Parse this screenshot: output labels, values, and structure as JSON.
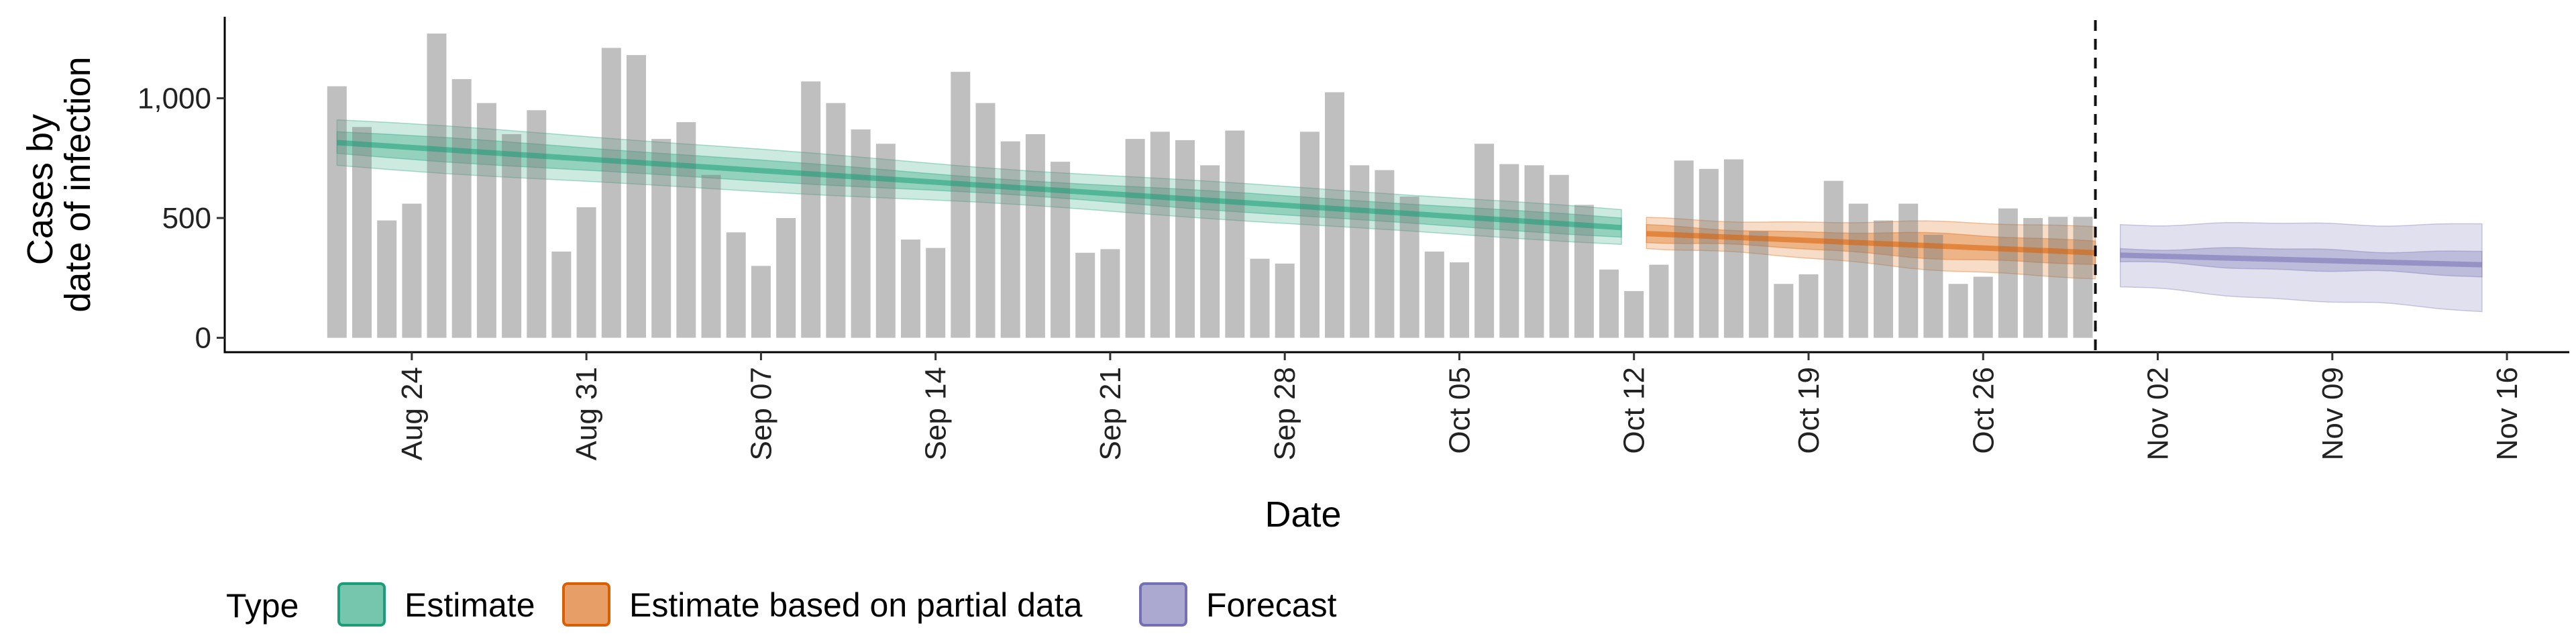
{
  "chart_data": {
    "type": "bar",
    "xlabel": "Date",
    "ylabel_lines": [
      "Cases by",
      "date of infection"
    ],
    "ylim": [
      -60,
      1340
    ],
    "y_ticks": [
      0,
      500,
      1000
    ],
    "y_tick_labels": [
      "0",
      "500",
      "1,000"
    ],
    "x_ticks": [
      "Aug 24",
      "Aug 31",
      "Sep 07",
      "Sep 14",
      "Sep 21",
      "Sep 28",
      "Oct 05",
      "Oct 12",
      "Oct 19",
      "Oct 26",
      "Nov 02",
      "Nov 09",
      "Nov 16"
    ],
    "x_tick_days": [
      3,
      10,
      17,
      24,
      31,
      38,
      45,
      52,
      59,
      66,
      73,
      80,
      87
    ],
    "x_range_days": [
      -4.5,
      89.5
    ],
    "date_labels_start": "Aug 21",
    "bars": [
      1050,
      880,
      490,
      560,
      1270,
      1080,
      980,
      850,
      950,
      360,
      545,
      1210,
      1180,
      830,
      900,
      680,
      440,
      300,
      500,
      1070,
      980,
      870,
      810,
      410,
      375,
      1110,
      980,
      820,
      850,
      735,
      355,
      370,
      830,
      860,
      825,
      720,
      865,
      330,
      310,
      860,
      1025,
      720,
      700,
      590,
      360,
      315,
      810,
      725,
      720,
      680,
      555,
      285,
      195,
      305,
      740,
      705,
      745,
      445,
      225,
      265,
      655,
      560,
      490,
      560,
      430,
      225,
      255,
      540,
      500,
      505,
      505
    ],
    "partial_data_start_day": 52,
    "forecast_line_day": 70.5,
    "series": [
      {
        "name": "Estimate",
        "color": "#1b9e77",
        "days": [
          0,
          51.5
        ],
        "median": [
          815,
          460
        ],
        "inner": [
          [
            770,
            860
          ],
          [
            425,
            495
          ]
        ],
        "outer": [
          [
            720,
            910
          ],
          [
            395,
            530
          ]
        ]
      },
      {
        "name": "Estimate based on partial data",
        "color": "#d95f02",
        "days": [
          52.5,
          70.5
        ],
        "median": [
          435,
          355
        ],
        "inner": [
          [
            405,
            465
          ],
          [
            300,
            410
          ]
        ],
        "outer": [
          [
            380,
            495
          ],
          [
            240,
            470
          ]
        ]
      },
      {
        "name": "Forecast",
        "color": "#7570b3",
        "days": [
          71.5,
          86
        ],
        "median": [
          345,
          305
        ],
        "inner": [
          [
            315,
            375
          ],
          [
            255,
            360
          ]
        ],
        "outer": [
          [
            210,
            475
          ],
          [
            110,
            475
          ]
        ]
      }
    ],
    "legend": {
      "title": "Type",
      "position": "bottom",
      "items": [
        "Estimate",
        "Estimate based on partial data",
        "Forecast"
      ]
    },
    "grid": false
  }
}
